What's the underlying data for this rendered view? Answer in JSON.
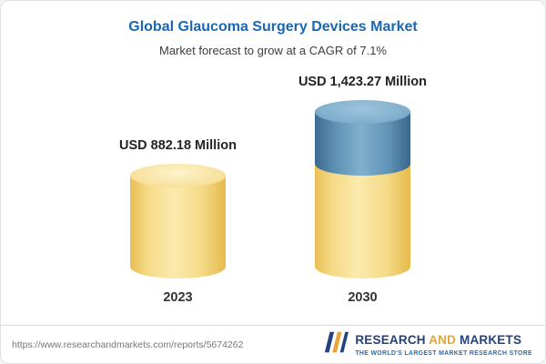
{
  "header": {
    "title": "Global Glaucoma Surgery Devices Market",
    "subtitle": "Market forecast to grow at a CAGR of 7.1%"
  },
  "chart_data": {
    "type": "bar",
    "categories": [
      "2023",
      "2030"
    ],
    "values": [
      882.18,
      1423.27
    ],
    "value_labels": [
      "USD 882.18 Million",
      "USD 1,423.27 Million"
    ],
    "series_note": "2030 bar drawn as stacked cylinder: base equals 2023 value (yellow), top segment equals growth increment (blue)",
    "title": "Global Glaucoma Surgery Devices Market",
    "subtitle": "Market forecast to grow at a CAGR of 7.1%",
    "cagr_percent": 7.1,
    "xlabel": "",
    "ylabel": "USD Million",
    "ylim": [
      0,
      1500
    ],
    "grid": false,
    "legend": "none",
    "colors": {
      "bar_yellow": "#f5da87",
      "bar_blue": "#5f92b5",
      "title_blue": "#1a67b2"
    }
  },
  "footer": {
    "url": "https://www.researchandmarkets.com/reports/5674262",
    "logo": {
      "word1": "RESEARCH",
      "word2": "AND",
      "word3": "MARKETS",
      "tagline": "THE WORLD'S LARGEST MARKET RESEARCH STORE"
    }
  }
}
